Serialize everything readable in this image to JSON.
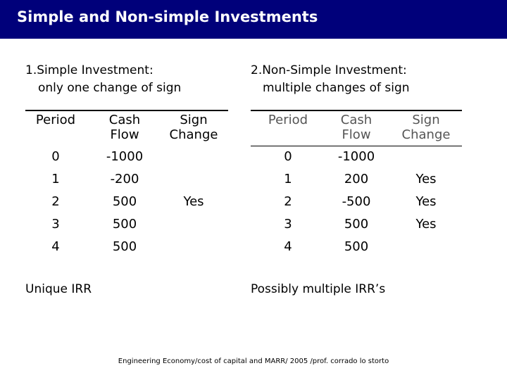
{
  "title": "Simple and Non-simple Investments",
  "left": {
    "heading_line1": "1.Simple Investment:",
    "heading_line2": "only one change of sign",
    "columns": [
      "Period",
      "Cash Flow",
      "Sign Change"
    ],
    "rows": [
      {
        "period": "0",
        "cash_flow": "-1000",
        "sign_change": ""
      },
      {
        "period": "1",
        "cash_flow": "-200",
        "sign_change": ""
      },
      {
        "period": "2",
        "cash_flow": "500",
        "sign_change": "Yes"
      },
      {
        "period": "3",
        "cash_flow": "500",
        "sign_change": ""
      },
      {
        "period": "4",
        "cash_flow": "500",
        "sign_change": ""
      }
    ],
    "note": "Unique IRR"
  },
  "right": {
    "heading_line1": "2.Non-Simple Investment:",
    "heading_line2": "multiple changes of sign",
    "columns": [
      "Period",
      "Cash Flow",
      "Sign Change"
    ],
    "rows": [
      {
        "period": "0",
        "cash_flow": "-1000",
        "sign_change": ""
      },
      {
        "period": "1",
        "cash_flow": "200",
        "sign_change": "Yes"
      },
      {
        "period": "2",
        "cash_flow": "-500",
        "sign_change": "Yes"
      },
      {
        "period": "3",
        "cash_flow": "500",
        "sign_change": "Yes"
      },
      {
        "period": "4",
        "cash_flow": "500",
        "sign_change": ""
      }
    ],
    "note": "Possibly multiple IRR’s"
  },
  "footer": "Engineering Economy/cost of capital and MARR/ 2005 /prof. corrado lo storto",
  "colors": {
    "title_bar": "#00007a",
    "title_text": "#ffffff",
    "muted_header": "#555555"
  }
}
